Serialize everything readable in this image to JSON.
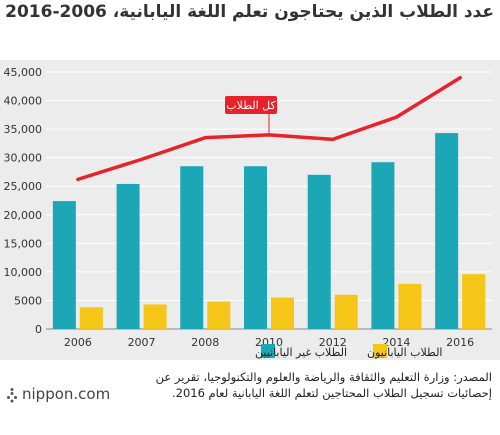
{
  "chart_data": {
    "type": "bar",
    "title": "عدد الطلاب الذين يحتاجون تعلم اللغة اليابانية، 2006-2016",
    "categories": [
      "2006",
      "2007",
      "2008",
      "2010",
      "2012",
      "2014",
      "2016"
    ],
    "series": [
      {
        "name": "الطلاب غير اليابانيين",
        "type": "bar",
        "color": "#1ba7b5",
        "values": [
          22400,
          25400,
          28500,
          28500,
          27000,
          29200,
          34300
        ]
      },
      {
        "name": "الطلاب اليابانيون",
        "type": "bar",
        "color": "#f5c518",
        "values": [
          3800,
          4300,
          4800,
          5500,
          6000,
          7900,
          9600
        ]
      },
      {
        "name": "كل الطلاب",
        "type": "line",
        "color": "#e8222a",
        "values": [
          26200,
          29700,
          33500,
          34000,
          33200,
          37100,
          44000
        ]
      }
    ],
    "y_ticks": [
      "0",
      "5000",
      "10,000",
      "15,000",
      "20,000",
      "25,000",
      "30,000",
      "35,000",
      "40,000",
      "45,000"
    ],
    "ylim": [
      0,
      45000
    ],
    "xlabel": "",
    "ylabel": "",
    "grid": true,
    "legend_position": "bottom"
  },
  "source_text": "المصدر: وزارة التعليم والثقافة والرياضة والعلوم والتكنولوجيا، تقرير عن إحصائيات تسجيل الطلاب المحتاجين لتعلم اللغة اليابانية لعام 2016.",
  "logo": {
    "text": "nippon.com"
  }
}
